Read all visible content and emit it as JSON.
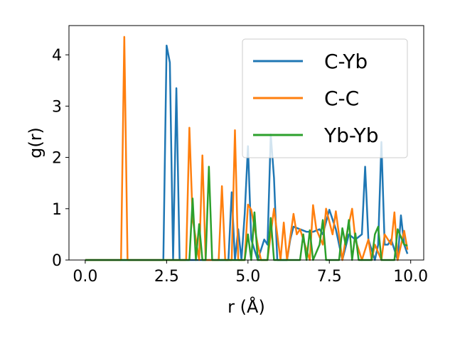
{
  "chart_data": {
    "type": "line",
    "title": "",
    "xlabel": "r (Å)",
    "ylabel": "g(r)",
    "xlim": [
      -0.5,
      10.4
    ],
    "ylim": [
      0,
      4.57
    ],
    "xticks": [
      {
        "value": 0.0,
        "label": "0.0"
      },
      {
        "value": 2.5,
        "label": "2.5"
      },
      {
        "value": 5.0,
        "label": "5.0"
      },
      {
        "value": 7.5,
        "label": "7.5"
      },
      {
        "value": 10.0,
        "label": "10.0"
      }
    ],
    "yticks": [
      {
        "value": 0,
        "label": "0"
      },
      {
        "value": 1,
        "label": "1"
      },
      {
        "value": 2,
        "label": "2"
      },
      {
        "value": 3,
        "label": "3"
      },
      {
        "value": 4,
        "label": "4"
      }
    ],
    "grid": false,
    "legend_position": "top-right",
    "series": [
      {
        "name": "C-Yb",
        "color": "#1f77b4",
        "x": [
          0.0,
          2.4,
          2.5,
          2.6,
          2.7,
          2.8,
          2.9,
          4.4,
          4.5,
          4.6,
          4.7,
          4.8,
          4.9,
          5.0,
          5.1,
          5.3,
          5.5,
          5.6,
          5.7,
          5.8,
          5.9,
          6.2,
          6.3,
          6.4,
          6.6,
          6.8,
          7.0,
          7.2,
          7.3,
          7.5,
          7.7,
          7.9,
          8.1,
          8.3,
          8.5,
          8.6,
          8.7,
          8.9,
          9.0,
          9.1,
          9.2,
          9.3,
          9.4,
          9.6,
          9.7,
          9.8,
          9.9
        ],
        "y": [
          0,
          0,
          4.18,
          3.85,
          0,
          3.35,
          0,
          0,
          1.32,
          0,
          0.6,
          0,
          0.9,
          2.22,
          0.4,
          0,
          0.4,
          0.3,
          2.45,
          1.6,
          0,
          0,
          0.4,
          0.65,
          0.6,
          0.55,
          0.55,
          0.6,
          0.5,
          0.98,
          0.6,
          0,
          0.5,
          0.4,
          0.5,
          1.82,
          0.4,
          0,
          0.3,
          2.3,
          0.3,
          0.3,
          0.4,
          0,
          0.87,
          0.3,
          0.12
        ]
      },
      {
        "name": "C-C",
        "color": "#ff7f0e",
        "x": [
          0.0,
          1.1,
          1.2,
          1.3,
          3.1,
          3.2,
          3.3,
          3.5,
          3.6,
          3.7,
          4.1,
          4.2,
          4.3,
          4.5,
          4.6,
          4.7,
          4.9,
          5.0,
          5.1,
          5.3,
          5.4,
          5.6,
          5.8,
          6.0,
          6.1,
          6.2,
          6.4,
          6.5,
          6.6,
          6.9,
          7.0,
          7.1,
          7.3,
          7.4,
          7.6,
          7.7,
          7.9,
          8.0,
          8.2,
          8.3,
          8.5,
          8.7,
          8.8,
          8.9,
          9.1,
          9.2,
          9.4,
          9.5,
          9.6,
          9.8,
          9.9
        ],
        "y": [
          0,
          0,
          4.35,
          0,
          0,
          2.58,
          0.8,
          0,
          2.04,
          0,
          0,
          1.44,
          0,
          0,
          2.53,
          0,
          0,
          1.08,
          0.98,
          0.3,
          0,
          0,
          1.0,
          0,
          0.73,
          0,
          0.9,
          0.5,
          0.6,
          0,
          1.07,
          0.6,
          0.3,
          1.0,
          0.5,
          0.95,
          0,
          0.4,
          1.0,
          0.4,
          0,
          0.4,
          0,
          0.3,
          0,
          0.5,
          0.3,
          0.93,
          0,
          0.57,
          0.2
        ]
      },
      {
        "name": "Yb-Yb",
        "color": "#2ca02c",
        "x": [
          0.0,
          3.2,
          3.3,
          3.4,
          3.5,
          3.6,
          3.7,
          3.8,
          3.9,
          4.0,
          4.1,
          4.9,
          5.0,
          5.1,
          5.2,
          5.3,
          5.4,
          5.6,
          5.7,
          5.8,
          6.6,
          6.7,
          6.8,
          6.9,
          7.0,
          7.2,
          7.3,
          7.4,
          7.8,
          7.9,
          8.0,
          8.1,
          8.2,
          8.3,
          8.4,
          8.8,
          8.9,
          9.0,
          9.1,
          9.3,
          9.5,
          9.6,
          9.7,
          9.8,
          9.9
        ],
        "y": [
          0,
          0,
          1.2,
          0,
          0.7,
          0,
          0,
          1.82,
          0,
          0,
          0,
          0,
          0.5,
          0,
          0.93,
          0,
          0,
          0,
          0.82,
          0,
          0,
          0.5,
          0,
          0.58,
          0,
          0.3,
          0.78,
          0,
          0,
          0.62,
          0.3,
          0.78,
          0,
          0.52,
          0,
          0,
          0.5,
          0.65,
          0,
          0,
          0,
          0.6,
          0.45,
          0.3,
          0.28
        ]
      }
    ]
  }
}
